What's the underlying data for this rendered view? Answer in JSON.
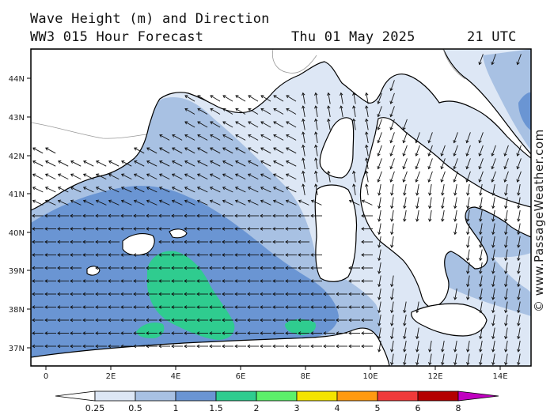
{
  "header": {
    "title": "Wave Height (m) and Direction",
    "model": "WW3 015 Hour Forecast",
    "date": "Thu 01 May 2025",
    "time": "21 UTC"
  },
  "credit": "© www.PassageWeather.com",
  "map": {
    "lat_labels": [
      "44N",
      "43N",
      "42N",
      "41N",
      "40N",
      "39N",
      "38N",
      "37N"
    ],
    "lon_labels": [
      "0",
      "2E",
      "4E",
      "6E",
      "8E",
      "10E",
      "12E",
      "14E"
    ]
  },
  "colorbar": {
    "labels": [
      "0.25",
      "0.5",
      "1",
      "1.5",
      "2",
      "3",
      "4",
      "5",
      "6",
      "8"
    ],
    "colors": [
      "#ffffff",
      "#dde7f5",
      "#a8c1e3",
      "#6a95d3",
      "#2fcc8f",
      "#5cf06a",
      "#f4e400",
      "#ff9a10",
      "#f03a3a",
      "#b40000",
      "#c000c0"
    ]
  },
  "wave_colors": {
    "light": "#dde7f5",
    "mid": "#a8c1e3",
    "dark": "#6a95d3",
    "green": "#2fcc8f"
  }
}
